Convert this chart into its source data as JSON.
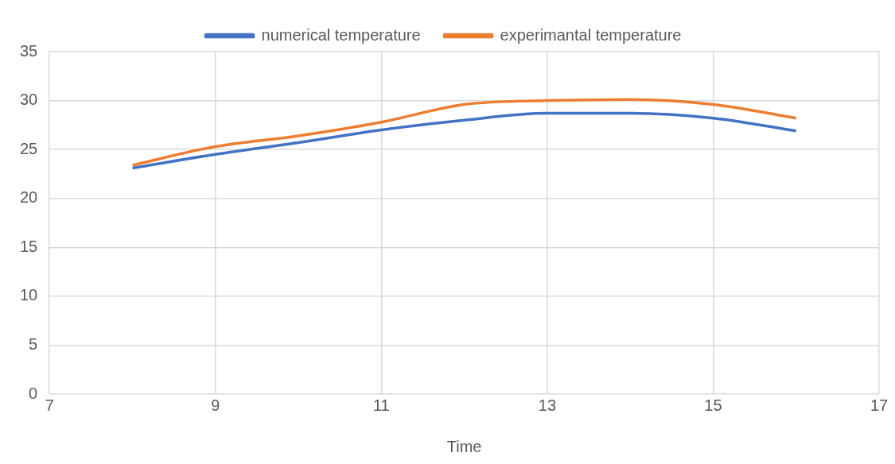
{
  "chart_data": {
    "type": "line",
    "xlabel": "Time",
    "x": [
      8,
      9,
      10,
      11,
      12,
      13,
      14,
      15,
      16
    ],
    "series": [
      {
        "name": "numerical temperature",
        "color": "#4472c4",
        "values": [
          23.1,
          24.5,
          25.7,
          27.0,
          28.0,
          28.7,
          28.7,
          28.2,
          26.9
        ]
      },
      {
        "name": "experimantal temperature",
        "color": "#ed7d31",
        "values": [
          23.4,
          25.3,
          26.4,
          27.8,
          29.6,
          30.0,
          30.1,
          29.6,
          28.2
        ]
      }
    ],
    "xlim": [
      7,
      17
    ],
    "xticks": [
      7,
      9,
      11,
      13,
      15,
      17
    ],
    "ylim": [
      0,
      35
    ],
    "yticks": [
      0,
      5,
      10,
      15,
      20,
      25,
      30,
      35
    ],
    "grid": true,
    "legend": "top",
    "marker": "none",
    "line_style": "solid"
  }
}
